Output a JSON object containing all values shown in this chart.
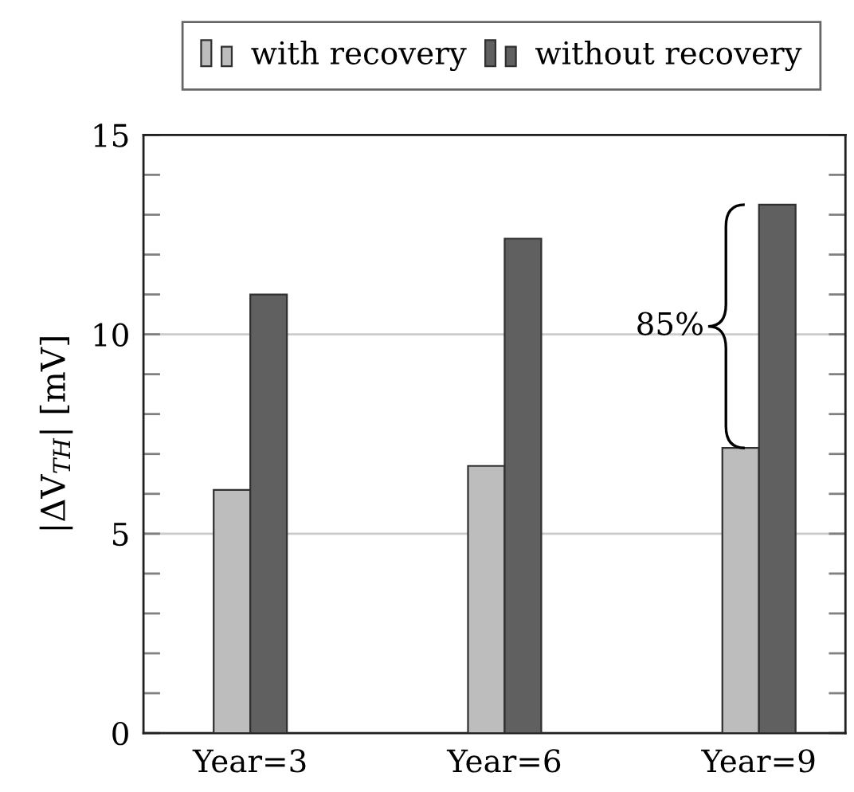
{
  "chart_data": {
    "type": "bar",
    "ylabel": "|ΔV$_{TH}$| [mV]",
    "categories": [
      "Year=3",
      "Year=6",
      "Year=9"
    ],
    "series": [
      {
        "name": "with recovery",
        "color": "#bdbdbd",
        "values": [
          6.1,
          6.7,
          7.15
        ]
      },
      {
        "name": "without recovery",
        "color": "#606060",
        "values": [
          11.0,
          12.4,
          13.25
        ]
      }
    ],
    "ylim": [
      0,
      15
    ],
    "yticks": [
      0,
      {
        "value": 1,
        "label": null
      },
      {
        "value": 2,
        "label": null
      },
      {
        "value": 3,
        "label": null
      },
      {
        "value": 4,
        "label": null
      },
      5,
      {
        "value": 6,
        "label": null
      },
      {
        "value": 7,
        "label": null
      },
      {
        "value": 8,
        "label": null
      },
      {
        "value": 9,
        "label": null
      },
      10,
      {
        "value": 11,
        "label": null
      },
      {
        "value": 12,
        "label": null
      },
      {
        "value": 13,
        "label": null
      },
      {
        "value": 14,
        "label": null
      },
      15
    ],
    "grid": "y",
    "legend": "top",
    "annotations": [
      {
        "text": "85%",
        "x": "Year=9",
        "y": 10.2
      }
    ]
  }
}
